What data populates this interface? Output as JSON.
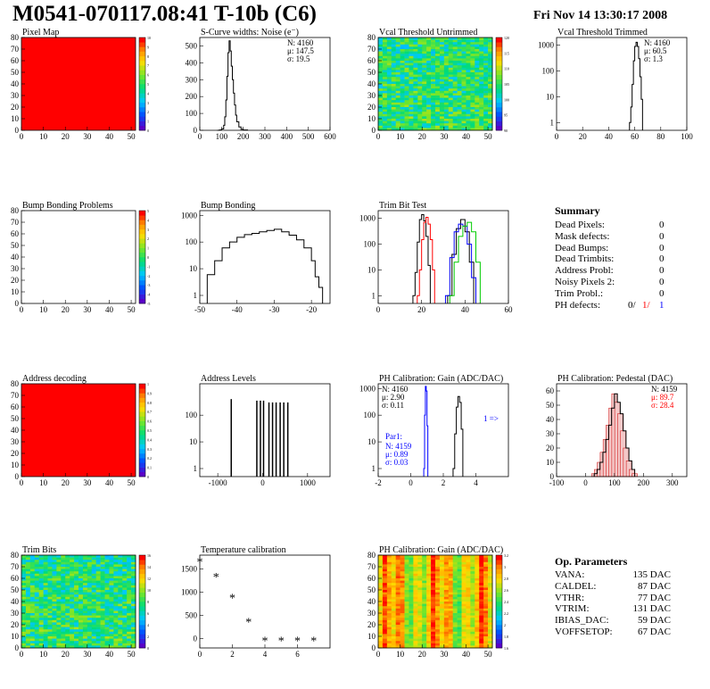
{
  "header": {
    "title": "M0541-070117.08:41 T-10b (C6)",
    "date": "Fri Nov 14 13:30:17 2008"
  },
  "colors": {
    "black": "#000000",
    "red": "#ff0000",
    "blue": "#0000ff",
    "green": "#00cc00",
    "heat_low": "#0000ff",
    "heat_high": "#ff0000"
  },
  "chart_data": [
    {
      "id": "pixel_map",
      "type": "heatmap",
      "title": "Pixel Map",
      "xlim": [
        0,
        52
      ],
      "ylim": [
        0,
        80
      ],
      "xticks": [
        0,
        10,
        20,
        30,
        40,
        50
      ],
      "yticks": [
        0,
        10,
        20,
        30,
        40,
        50,
        60,
        70,
        80
      ],
      "fill": "uniform-max",
      "zlim": [
        0,
        10
      ],
      "zticks": [
        0,
        1,
        2,
        3,
        4,
        5,
        6,
        7,
        8,
        9,
        10
      ]
    },
    {
      "id": "scurve",
      "type": "line",
      "title": "S-Curve widths: Noise (e⁻)",
      "xlim": [
        0,
        600
      ],
      "ylim": [
        0,
        550
      ],
      "xticks": [
        0,
        100,
        200,
        300,
        400,
        500,
        600
      ],
      "yticks": [
        0,
        100,
        200,
        300,
        400,
        500
      ],
      "stats": [
        "N: 4160",
        "μ: 147.5",
        "σ: 19.5"
      ],
      "x": [
        80,
        90,
        100,
        110,
        115,
        120,
        125,
        130,
        135,
        140,
        145,
        150,
        155,
        160,
        165,
        170,
        180,
        190,
        200,
        220
      ],
      "y": [
        0,
        2,
        8,
        30,
        80,
        180,
        320,
        460,
        530,
        470,
        380,
        300,
        220,
        150,
        90,
        50,
        20,
        6,
        2,
        0
      ]
    },
    {
      "id": "vcal_untrimmed",
      "type": "heatmap",
      "title": "Vcal Threshold Untrimmed",
      "xlim": [
        0,
        52
      ],
      "ylim": [
        0,
        80
      ],
      "xticks": [
        0,
        10,
        20,
        30,
        40,
        50
      ],
      "yticks": [
        0,
        10,
        20,
        30,
        40,
        50,
        60,
        70,
        80
      ],
      "zlim": [
        90,
        120
      ],
      "zticks": [
        90,
        95,
        100,
        105,
        110,
        115,
        120
      ],
      "fill": "noisy-mid"
    },
    {
      "id": "vcal_trimmed",
      "type": "line",
      "title": "Vcal Threshold Trimmed",
      "xlim": [
        0,
        100
      ],
      "ylog": true,
      "ylim": [
        0.5,
        2000
      ],
      "xticks": [
        0,
        20,
        40,
        60,
        80,
        100
      ],
      "yticks": [
        1,
        10,
        100,
        1000
      ],
      "stats": [
        "N: 4160",
        "μ: 60.5",
        "σ:  1.3"
      ],
      "x": [
        56,
        57,
        58,
        59,
        60,
        61,
        62,
        63,
        64,
        65,
        66
      ],
      "y": [
        1,
        4,
        30,
        250,
        900,
        1300,
        900,
        300,
        60,
        8,
        1
      ]
    },
    {
      "id": "bump_problems",
      "type": "heatmap",
      "title": "Bump Bonding Problems",
      "xlim": [
        0,
        52
      ],
      "ylim": [
        0,
        80
      ],
      "xticks": [
        0,
        10,
        20,
        30,
        40,
        50
      ],
      "yticks": [
        0,
        10,
        20,
        30,
        40,
        50,
        60,
        70,
        80
      ],
      "zlim": [
        -5,
        5
      ],
      "zticks": [
        -5,
        -4,
        -3,
        -2,
        -1,
        0,
        1,
        2,
        3,
        4,
        5
      ],
      "fill": "empty"
    },
    {
      "id": "bump_bonding",
      "type": "line",
      "title": "Bump Bonding",
      "xlim": [
        -50,
        -15
      ],
      "ylog": true,
      "ylim": [
        0.5,
        1500
      ],
      "xticks": [
        -50,
        -40,
        -30,
        -20
      ],
      "yticks": [
        1,
        10,
        100,
        1000
      ],
      "x": [
        -48,
        -46,
        -44,
        -42,
        -40,
        -38,
        -36,
        -34,
        -32,
        -30,
        -28,
        -26,
        -24,
        -22,
        -20,
        -19,
        -18,
        -17
      ],
      "y": [
        6,
        20,
        60,
        100,
        150,
        190,
        210,
        240,
        270,
        300,
        240,
        180,
        120,
        60,
        20,
        5,
        2,
        1
      ]
    },
    {
      "id": "trim_bit_test",
      "type": "line",
      "title": "Trim Bit Test",
      "xlim": [
        0,
        60
      ],
      "ylog": true,
      "ylim": [
        0.5,
        2000
      ],
      "xticks": [
        0,
        20,
        40,
        60
      ],
      "yticks": [
        1,
        10,
        100,
        1000
      ],
      "series": [
        {
          "color": "#000000",
          "x": [
            16,
            17,
            18,
            19,
            20,
            21,
            22,
            23,
            24
          ],
          "y": [
            1,
            8,
            120,
            900,
            1400,
            800,
            200,
            15,
            1
          ]
        },
        {
          "color": "#ff0000",
          "x": [
            18,
            19,
            20,
            21,
            22,
            23,
            24,
            25,
            26
          ],
          "y": [
            1,
            10,
            150,
            700,
            1100,
            600,
            150,
            10,
            1
          ]
        },
        {
          "color": "#000000",
          "x": [
            32,
            34,
            36,
            38,
            40,
            42,
            44
          ],
          "y": [
            1,
            40,
            400,
            900,
            300,
            20,
            1
          ]
        },
        {
          "color": "#0000ff",
          "x": [
            31,
            33,
            35,
            37,
            39,
            41,
            43,
            45
          ],
          "y": [
            1,
            30,
            300,
            600,
            500,
            100,
            5,
            1
          ]
        },
        {
          "color": "#00cc00",
          "x": [
            33,
            35,
            37,
            39,
            41,
            43,
            45,
            47
          ],
          "y": [
            1,
            20,
            200,
            500,
            700,
            300,
            20,
            1
          ]
        }
      ]
    },
    {
      "id": "address_decoding",
      "type": "heatmap",
      "title": "Address decoding",
      "xlim": [
        0,
        52
      ],
      "ylim": [
        0,
        80
      ],
      "xticks": [
        0,
        10,
        20,
        30,
        40,
        50
      ],
      "yticks": [
        0,
        10,
        20,
        30,
        40,
        50,
        60,
        70,
        80
      ],
      "zlim": [
        0,
        1
      ],
      "zticks": [
        0,
        0.1,
        0.2,
        0.3,
        0.4,
        0.5,
        0.6,
        0.7,
        0.8,
        0.9,
        1
      ],
      "fill": "uniform-max"
    },
    {
      "id": "address_levels",
      "type": "bar",
      "title": "Address Levels",
      "xlim": [
        -1400,
        1500
      ],
      "ylog": true,
      "ylim": [
        0.5,
        1500
      ],
      "xticks": [
        -1000,
        0,
        1000
      ],
      "yticks": [
        1,
        10,
        100
      ],
      "x": [
        -700,
        -130,
        -50,
        20,
        140,
        220,
        300,
        390,
        470,
        560
      ],
      "y": [
        400,
        350,
        350,
        350,
        300,
        300,
        300,
        300,
        300,
        300
      ]
    },
    {
      "id": "ph_gain",
      "type": "line",
      "title": "PH Calibration: Gain (ADC/DAC)",
      "xlim": [
        -2,
        6
      ],
      "ylog": true,
      "ylim": [
        0.5,
        1500
      ],
      "xticks": [
        -2,
        0,
        2,
        4
      ],
      "yticks": [
        1,
        10,
        100,
        1000
      ],
      "stats": [
        "N: 4160",
        "μ: 2.90",
        "σ: 0.11"
      ],
      "series": [
        {
          "color": "#000000",
          "x": [
            2.6,
            2.7,
            2.8,
            2.9,
            3.0,
            3.1,
            3.2
          ],
          "y": [
            1,
            20,
            200,
            500,
            300,
            30,
            1
          ]
        },
        {
          "color": "#0000ff",
          "x": [
            0.8,
            0.85,
            0.9,
            0.95,
            1.0,
            1.05
          ],
          "y": [
            1,
            100,
            1200,
            800,
            40,
            1
          ]
        }
      ],
      "overlay": {
        "title": "Par1:",
        "lines": [
          "N: 4159",
          "μ: 0.89",
          "σ: 0.03"
        ],
        "arrow": "1 =>"
      }
    },
    {
      "id": "ph_pedestal",
      "type": "bar",
      "title": "PH Calibration: Pedestal (DAC)",
      "xlim": [
        -100,
        350
      ],
      "ylim": [
        0,
        65
      ],
      "xticks": [
        -100,
        0,
        100,
        200,
        300
      ],
      "yticks": [
        0,
        10,
        20,
        30,
        40,
        50,
        60
      ],
      "stats": [
        "N: 4159",
        "μ: 89.7",
        "σ: 28.4"
      ],
      "x": [
        30,
        40,
        50,
        60,
        70,
        80,
        90,
        100,
        110,
        120,
        130,
        140,
        150,
        160,
        170
      ],
      "y": [
        2,
        5,
        10,
        17,
        26,
        36,
        48,
        58,
        52,
        44,
        32,
        20,
        11,
        5,
        2
      ]
    },
    {
      "id": "trim_bits",
      "type": "heatmap",
      "title": "Trim Bits",
      "xlim": [
        0,
        52
      ],
      "ylim": [
        0,
        80
      ],
      "xticks": [
        0,
        10,
        20,
        30,
        40,
        50
      ],
      "yticks": [
        0,
        10,
        20,
        30,
        40,
        50,
        60,
        70,
        80
      ],
      "zlim": [
        0,
        16
      ],
      "zticks": [
        0,
        2,
        4,
        6,
        8,
        10,
        12,
        14,
        16
      ],
      "fill": "noisy-mid"
    },
    {
      "id": "temp_calibration",
      "type": "scatter",
      "title": "Temperature calibration",
      "xlim": [
        0,
        8
      ],
      "ylim": [
        -200,
        1800
      ],
      "xticks": [
        0,
        2,
        4,
        6
      ],
      "yticks": [
        0,
        500,
        1000,
        1500
      ],
      "x": [
        0,
        1,
        2,
        3,
        4,
        5,
        6,
        7
      ],
      "y": [
        1650,
        1320,
        870,
        350,
        -60,
        -60,
        -60,
        -60
      ]
    },
    {
      "id": "ph_gain_map",
      "type": "heatmap",
      "title": "PH Calibration: Gain (ADC/DAC)",
      "xlim": [
        0,
        52
      ],
      "ylim": [
        0,
        80
      ],
      "xticks": [
        0,
        10,
        20,
        30,
        40,
        50
      ],
      "yticks": [
        0,
        10,
        20,
        30,
        40,
        50,
        60,
        70,
        80
      ],
      "zlim": [
        1.6,
        3.2
      ],
      "zticks": [
        1.6,
        1.8,
        2,
        2.2,
        2.4,
        2.6,
        2.8,
        3,
        3.2
      ],
      "fill": "column-bands"
    }
  ],
  "summary": {
    "title": "Summary",
    "rows": [
      {
        "label": "Dead Pixels:",
        "value": "0"
      },
      {
        "label": "Mask defects:",
        "value": "0"
      },
      {
        "label": "Dead Bumps:",
        "value": "0"
      },
      {
        "label": "Dead Trimbits:",
        "value": "0"
      },
      {
        "label": "Address Probl:",
        "value": "0"
      },
      {
        "label": "Noisy Pixels 2:",
        "value": "0"
      },
      {
        "label": "Trim Probl.:",
        "value": "0"
      }
    ],
    "ph_label": "PH defects:",
    "ph_values": [
      {
        "text": "0/",
        "color": "#000000"
      },
      {
        "text": "1/",
        "color": "#ff0000"
      },
      {
        "text": "1",
        "color": "#0000ff"
      }
    ]
  },
  "op_parameters": {
    "title": "Op. Parameters",
    "rows": [
      {
        "label": "VANA:",
        "value": "135 DAC"
      },
      {
        "label": "CALDEL:",
        "value": "87 DAC"
      },
      {
        "label": "VTHR:",
        "value": "77 DAC"
      },
      {
        "label": "VTRIM:",
        "value": "131 DAC"
      },
      {
        "label": "IBIAS_DAC:",
        "value": "59 DAC"
      },
      {
        "label": "VOFFSETOP:",
        "value": "67 DAC"
      }
    ]
  }
}
